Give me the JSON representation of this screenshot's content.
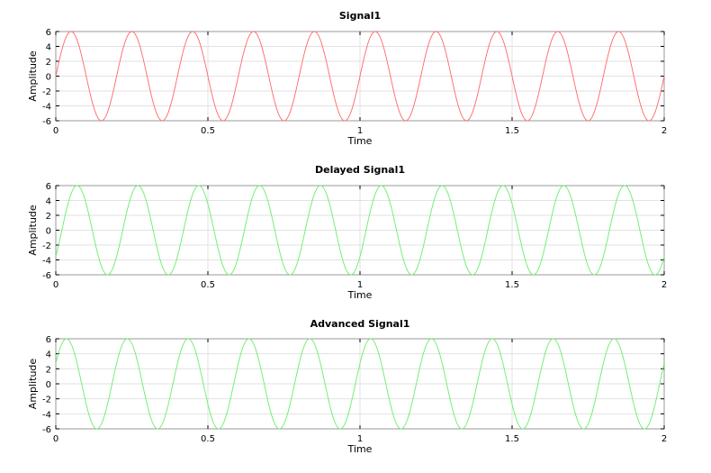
{
  "chart_data": [
    {
      "type": "line",
      "title": "Signal1",
      "xlabel": "Time",
      "ylabel": "Amplitude",
      "xlim": [
        0,
        2
      ],
      "ylim": [
        -6,
        6
      ],
      "xticks": [
        "0",
        "0.5",
        "1",
        "1.5",
        "2"
      ],
      "yticks": [
        "6",
        "4",
        "2",
        "0",
        "-2",
        "-4",
        "-6"
      ],
      "grid": true,
      "series": [
        {
          "color": "#ff6666",
          "amplitude": 6,
          "frequency_hz": 5,
          "phase_shift_s": 0
        }
      ]
    },
    {
      "type": "line",
      "title": "Delayed Signal1",
      "xlabel": "Time",
      "ylabel": "Amplitude",
      "xlim": [
        0,
        2
      ],
      "ylim": [
        -6,
        6
      ],
      "xticks": [
        "0",
        "0.5",
        "1",
        "1.5",
        "2"
      ],
      "yticks": [
        "6",
        "4",
        "2",
        "0",
        "-2",
        "-4",
        "-6"
      ],
      "grid": true,
      "series": [
        {
          "color": "#66ee66",
          "amplitude": 6,
          "frequency_hz": 5,
          "phase_shift_s": 0.02
        }
      ]
    },
    {
      "type": "line",
      "title": "Advanced Signal1",
      "xlabel": "Time",
      "ylabel": "Amplitude",
      "xlim": [
        0,
        2
      ],
      "ylim": [
        -6,
        6
      ],
      "xticks": [
        "0",
        "0.5",
        "1",
        "1.5",
        "2"
      ],
      "yticks": [
        "6",
        "4",
        "2",
        "0",
        "-2",
        "-4",
        "-6"
      ],
      "grid": true,
      "series": [
        {
          "color": "#66ee66",
          "amplitude": 6,
          "frequency_hz": 5,
          "phase_shift_s": -0.015
        }
      ]
    }
  ]
}
